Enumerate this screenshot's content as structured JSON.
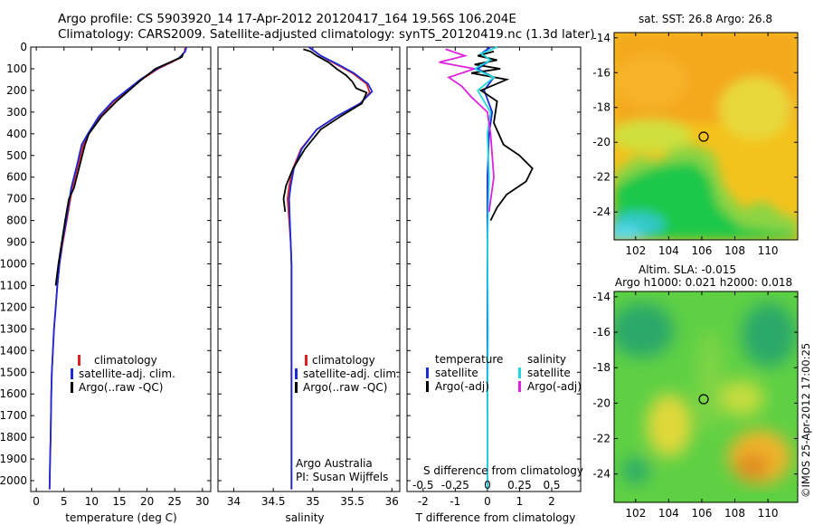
{
  "title_line1": "Argo profile: CS 5903920_14 17-Apr-2012 20120417_164 19.56S 106.204E",
  "title_line2": "Climatology: CARS2009. Satellite-adjusted climatology: synTS_20120419.nc (1.3d later)",
  "colors": {
    "climatology": "#e02020",
    "satellite": "#1a2ad8",
    "argo": "#000000",
    "sat_salinity": "#20d8e0",
    "argo_salinity": "#e020e0"
  },
  "depth_ticks": [
    "0",
    "100",
    "200",
    "300",
    "400",
    "500",
    "600",
    "700",
    "800",
    "900",
    "1000",
    "1100",
    "1200",
    "1300",
    "1400",
    "1500",
    "1600",
    "1700",
    "1800",
    "1900",
    "2000"
  ],
  "chart_data": [
    {
      "type": "line",
      "name": "temperature-profile",
      "xlabel": "temperature (deg C)",
      "ylabel": "",
      "xlim": [
        -1,
        31.5
      ],
      "ylim": [
        2050,
        0
      ],
      "xticks": [
        "0",
        "5",
        "10",
        "15",
        "20",
        "25",
        "30"
      ],
      "legend": [
        "climatology",
        "satellite-adj. clim.",
        "Argo(..raw -QC)"
      ],
      "legend_position": "lower-center",
      "series": [
        {
          "name": "climatology",
          "x": [
            26.9,
            26.8,
            26.0,
            22.0,
            19.0,
            14.0,
            11.5,
            9.5,
            8.5,
            7.5,
            6.5,
            5.5,
            4.8,
            4.2,
            3.8,
            3.5,
            3.2,
            3.0,
            2.8,
            2.7,
            2.6,
            2.5,
            2.4
          ],
          "y": [
            0,
            20,
            50,
            100,
            150,
            250,
            320,
            400,
            450,
            550,
            650,
            800,
            900,
            1000,
            1100,
            1200,
            1300,
            1400,
            1500,
            1600,
            1800,
            1900,
            2040
          ]
        },
        {
          "name": "satellite-adj. clim.",
          "x": [
            27.1,
            26.9,
            25.8,
            21.8,
            18.8,
            13.8,
            11.3,
            9.3,
            8.2,
            7.3,
            6.3,
            5.4,
            4.7,
            4.2,
            3.8,
            3.5,
            3.2,
            3.0,
            2.8,
            2.7,
            2.6,
            2.5,
            2.4
          ],
          "y": [
            0,
            20,
            50,
            100,
            150,
            250,
            320,
            400,
            450,
            550,
            650,
            800,
            900,
            1000,
            1100,
            1200,
            1300,
            1400,
            1500,
            1600,
            1800,
            1900,
            2040
          ]
        },
        {
          "name": "Argo(..raw -QC)",
          "x": [
            26.5,
            26.3,
            25.0,
            21.5,
            19.0,
            14.5,
            11.8,
            9.5,
            8.8,
            7.8,
            6.8,
            5.9,
            5.2,
            4.6,
            4.0,
            3.5
          ],
          "y": [
            30,
            45,
            60,
            100,
            150,
            250,
            320,
            400,
            450,
            550,
            650,
            700,
            800,
            900,
            1000,
            1100
          ]
        }
      ]
    },
    {
      "type": "line",
      "name": "salinity-profile",
      "xlabel": "salinity",
      "xlim": [
        33.8,
        36.1
      ],
      "ylim": [
        2050,
        0
      ],
      "xticks": [
        "34",
        "34.5",
        "35",
        "35.5",
        "36"
      ],
      "legend": [
        "climatology",
        "satellite-adj. clim.",
        "Argo(..raw -QC)"
      ],
      "legend_position": "lower-center",
      "annotation_line1": "Argo Australia",
      "annotation_line2": "PI: Susan Wijffels",
      "series": [
        {
          "name": "climatology",
          "x": [
            34.95,
            35.1,
            35.3,
            35.5,
            35.68,
            35.72,
            35.6,
            35.3,
            35.05,
            34.85,
            34.75,
            34.7,
            34.68,
            34.7,
            34.72,
            34.73,
            34.73,
            34.73,
            34.73,
            34.73
          ],
          "y": [
            0,
            40,
            80,
            120,
            170,
            210,
            260,
            320,
            380,
            470,
            560,
            640,
            700,
            800,
            900,
            1000,
            1200,
            1500,
            1800,
            2040
          ]
        },
        {
          "name": "satellite-adj. clim.",
          "x": [
            34.95,
            35.1,
            35.32,
            35.52,
            35.7,
            35.75,
            35.6,
            35.3,
            35.05,
            34.86,
            34.76,
            34.72,
            34.7,
            34.71,
            34.72,
            34.73,
            34.73,
            34.73,
            34.73,
            34.73
          ],
          "y": [
            0,
            40,
            80,
            120,
            170,
            205,
            260,
            320,
            380,
            470,
            560,
            640,
            700,
            800,
            900,
            1000,
            1200,
            1500,
            1800,
            2040
          ]
        },
        {
          "name": "Argo(..raw -QC)",
          "x": [
            34.88,
            34.97,
            35.05,
            35.2,
            35.3,
            35.42,
            35.5,
            35.55,
            35.68,
            35.62,
            35.35,
            35.1,
            34.9,
            34.75,
            34.66,
            34.63,
            34.65
          ],
          "y": [
            10,
            20,
            40,
            70,
            100,
            130,
            160,
            190,
            210,
            260,
            320,
            380,
            470,
            560,
            640,
            700,
            760
          ]
        }
      ]
    },
    {
      "type": "line",
      "name": "difference-profile",
      "xlabel": "T difference from climatology",
      "xlabel_top": "S difference from climatology",
      "xlim": [
        -2.5,
        2.9
      ],
      "ylim": [
        2050,
        0
      ],
      "xticks": [
        "-2",
        "-1",
        "0",
        "1",
        "2"
      ],
      "xticks_top": [
        "-0.5",
        "-0.25",
        "0",
        "0.25",
        "0.5"
      ],
      "legend_temperature_title": "temperature",
      "legend_salinity_title": "salinity",
      "legend": [
        "satellite",
        "Argo(-adj)",
        "satellite",
        "Argo(-adj)"
      ],
      "legend_position": "lower-center",
      "series": [
        {
          "name": "T satellite",
          "x": [
            0.1,
            -0.2,
            0.1,
            -0.3,
            0.2,
            -0.1,
            0.15,
            0.05,
            0.0,
            0.0,
            0.0,
            0.0,
            0.0
          ],
          "y": [
            0,
            30,
            60,
            100,
            140,
            200,
            300,
            400,
            600,
            900,
            1300,
            1700,
            2040
          ]
        },
        {
          "name": "T Argo(-adj)",
          "x": [
            0.2,
            -0.3,
            0.3,
            -0.4,
            0.4,
            -0.5,
            0.6,
            -0.2,
            0.3,
            0.2,
            0.5,
            1.0,
            1.4,
            1.2,
            0.6,
            0.3,
            0.1
          ],
          "y": [
            20,
            40,
            60,
            80,
            100,
            120,
            150,
            200,
            250,
            350,
            450,
            500,
            560,
            620,
            680,
            740,
            800
          ]
        },
        {
          "name": "S satellite",
          "x": [
            0.3,
            -0.2,
            0.1,
            -0.4,
            0.2,
            -0.3,
            0.1,
            0.0,
            0.05,
            0.0,
            0.02,
            0.0,
            0.0
          ],
          "y": [
            0,
            30,
            60,
            100,
            140,
            200,
            300,
            400,
            600,
            900,
            1300,
            1700,
            2040
          ]
        },
        {
          "name": "S Argo(-adj)",
          "x": [
            -1.3,
            -0.7,
            -1.5,
            -0.4,
            -1.2,
            -0.8,
            -0.5,
            0.0,
            0.1,
            0.2,
            0.05
          ],
          "y": [
            10,
            40,
            70,
            100,
            140,
            180,
            230,
            300,
            400,
            600,
            760
          ]
        }
      ]
    },
    {
      "type": "heatmap",
      "name": "sst-map",
      "title": "sat. SST: 26.8  Argo: 26.8",
      "xticks": [
        "102",
        "104",
        "106",
        "108",
        "110"
      ],
      "yticks": [
        "-14",
        "-16",
        "-18",
        "-20",
        "-22",
        "-24"
      ],
      "xlim": [
        100.7,
        111.8
      ],
      "ylim": [
        -25.6,
        -13.7
      ],
      "marker": {
        "lon": 106.2,
        "lat": -19.56
      }
    },
    {
      "type": "heatmap",
      "name": "sla-map",
      "title_line1": "Altim. SLA: -0.015",
      "title_line2": "Argo h1000: 0.021 h2000: 0.018",
      "xticks": [
        "102",
        "104",
        "106",
        "108",
        "110"
      ],
      "yticks": [
        "-14",
        "-16",
        "-18",
        "-20",
        "-22",
        "-24"
      ],
      "xlim": [
        100.7,
        111.8
      ],
      "ylim": [
        -25.6,
        -13.7
      ],
      "marker": {
        "lon": 106.2,
        "lat": -19.56
      }
    }
  ],
  "side_label": "©IMOS 25-Apr-2012 17:00:25"
}
